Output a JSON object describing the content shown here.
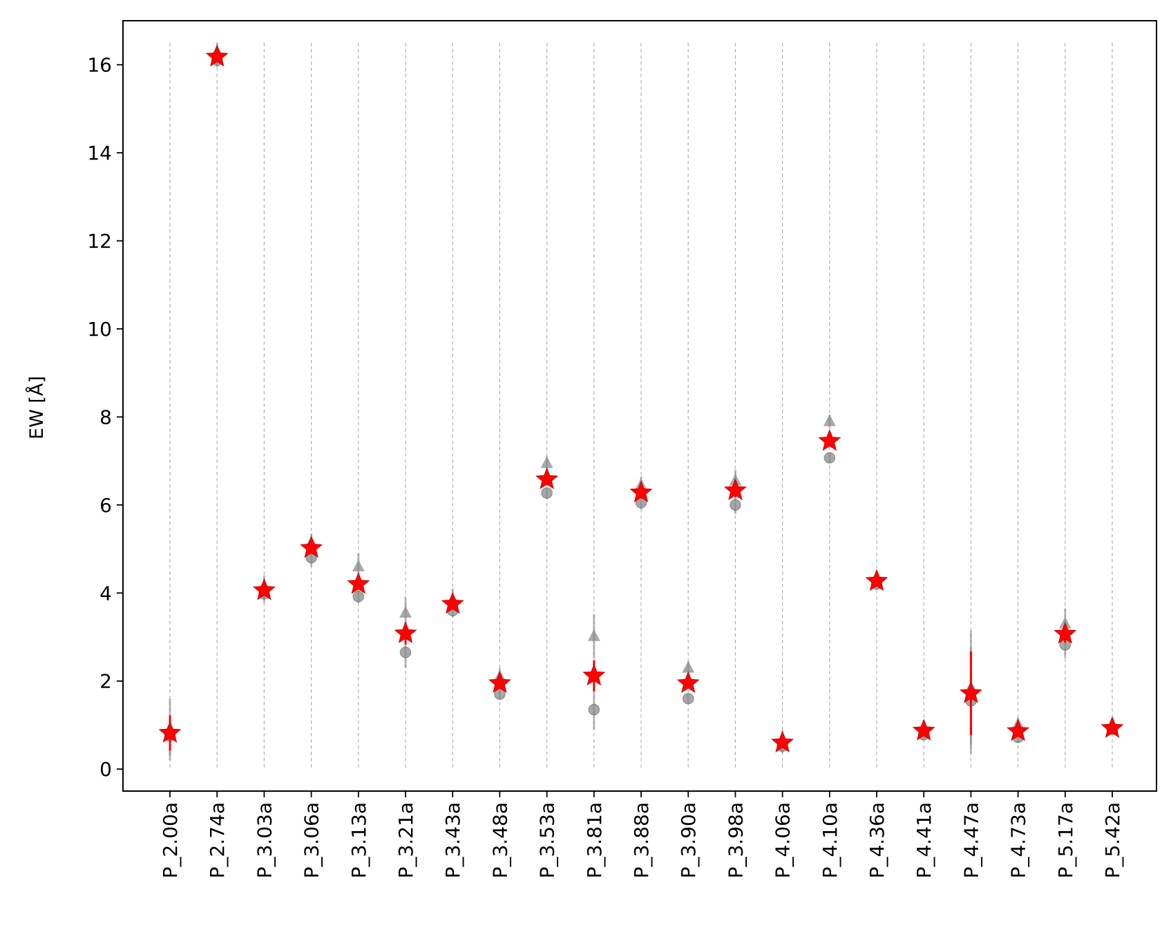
{
  "chart_data": {
    "type": "scatter",
    "title": "",
    "xlabel": "",
    "ylabel": "EW [Å]",
    "ylim": [
      -0.5,
      17
    ],
    "yticks": [
      0,
      2,
      4,
      6,
      8,
      10,
      12,
      14,
      16
    ],
    "grid": "vertical dashed lines at each category",
    "categories": [
      "P_2.00a",
      "P_2.74a",
      "P_3.03a",
      "P_3.06a",
      "P_3.13a",
      "P_3.21a",
      "P_3.43a",
      "P_3.48a",
      "P_3.53a",
      "P_3.81a",
      "P_3.88a",
      "P_3.90a",
      "P_3.98a",
      "P_4.06a",
      "P_4.10a",
      "P_4.36a",
      "P_4.41a",
      "P_4.47a",
      "P_4.73a",
      "P_5.17a",
      "P_5.42a"
    ],
    "series": [
      {
        "marker": "star",
        "color": "#ff0000",
        "values": [
          0.82,
          16.18,
          4.06,
          5.02,
          4.2,
          3.08,
          3.75,
          1.95,
          6.58,
          2.12,
          6.28,
          1.95,
          6.33,
          0.6,
          7.45,
          4.27,
          0.87,
          1.72,
          0.86,
          3.07,
          0.93
        ],
        "err": [
          0.4,
          0.12,
          0.1,
          0.1,
          0.12,
          0.25,
          0.1,
          0.12,
          0.1,
          0.35,
          0.1,
          0.1,
          0.15,
          0.1,
          0.1,
          0.08,
          0.1,
          0.95,
          0.12,
          0.2,
          0.08
        ]
      },
      {
        "marker": "triangle",
        "color": "#8c8c8c",
        "values": [
          0.9,
          16.3,
          4.15,
          5.15,
          4.6,
          3.55,
          3.85,
          2.1,
          6.95,
          3.02,
          6.45,
          2.3,
          6.55,
          0.68,
          7.9,
          4.35,
          0.95,
          1.85,
          1.02,
          3.3,
          0.97
        ],
        "err": [
          0.7,
          0.2,
          0.25,
          0.2,
          0.3,
          0.35,
          0.25,
          0.2,
          0.15,
          0.5,
          0.2,
          0.15,
          0.25,
          0.2,
          0.15,
          0.15,
          0.15,
          1.3,
          0.15,
          0.35,
          0.1
        ]
      },
      {
        "marker": "circle",
        "color": "#8c8c8c",
        "values": [
          0.75,
          16.1,
          3.98,
          4.8,
          3.92,
          2.65,
          3.6,
          1.7,
          6.27,
          1.35,
          6.05,
          1.6,
          6.0,
          0.52,
          7.07,
          4.2,
          0.78,
          1.55,
          0.72,
          2.82,
          0.9
        ],
        "err": [
          0.45,
          0.15,
          0.2,
          0.2,
          0.15,
          0.35,
          0.15,
          0.12,
          0.1,
          0.45,
          0.15,
          0.1,
          0.2,
          0.15,
          0.1,
          0.1,
          0.1,
          1.2,
          0.12,
          0.3,
          0.08
        ]
      }
    ]
  }
}
